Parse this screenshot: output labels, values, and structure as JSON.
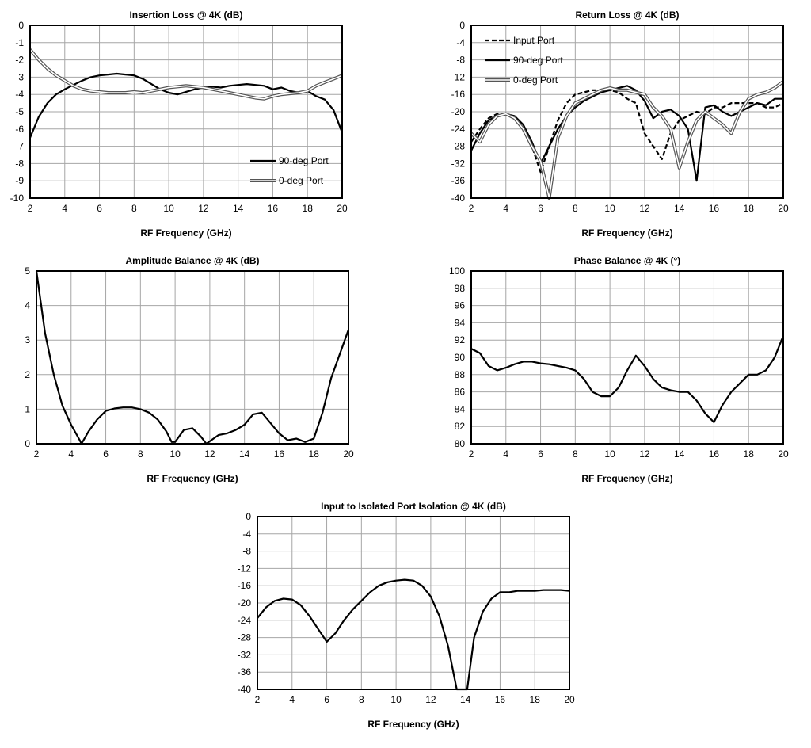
{
  "chart_data": [
    {
      "id": "insertion-loss",
      "type": "line",
      "title": "Insertion Loss @ 4K (dB)",
      "xlabel": "RF Frequency  (GHz)",
      "ylabel": "",
      "xlim": [
        2,
        20
      ],
      "ylim": [
        -10,
        0
      ],
      "xticks": [
        2,
        4,
        6,
        8,
        10,
        12,
        14,
        16,
        18,
        20
      ],
      "yticks": [
        0,
        -1,
        -2,
        -3,
        -4,
        -5,
        -6,
        -7,
        -8,
        -9,
        -10
      ],
      "grid": true,
      "legend": "bottom-right",
      "series": [
        {
          "name": "90-deg Port",
          "style": "solid",
          "x": [
            2,
            2.5,
            3,
            3.5,
            4,
            4.5,
            5,
            5.5,
            6,
            6.5,
            7,
            7.5,
            8,
            8.5,
            9,
            9.5,
            10,
            10.5,
            11,
            11.5,
            12,
            12.5,
            13,
            13.5,
            14,
            14.5,
            15,
            15.5,
            16,
            16.5,
            17,
            17.5,
            18,
            18.5,
            19,
            19.5,
            20
          ],
          "y": [
            -6.5,
            -5.3,
            -4.5,
            -4.0,
            -3.7,
            -3.45,
            -3.2,
            -3.0,
            -2.9,
            -2.85,
            -2.8,
            -2.85,
            -2.9,
            -3.1,
            -3.4,
            -3.7,
            -3.9,
            -4.0,
            -3.85,
            -3.7,
            -3.6,
            -3.55,
            -3.6,
            -3.5,
            -3.45,
            -3.4,
            -3.45,
            -3.5,
            -3.7,
            -3.6,
            -3.8,
            -3.9,
            -3.8,
            -4.1,
            -4.3,
            -4.9,
            -6.2
          ]
        },
        {
          "name": "0-deg Port",
          "style": "double",
          "x": [
            2,
            2.5,
            3,
            3.5,
            4,
            4.5,
            5,
            5.5,
            6,
            6.5,
            7,
            7.5,
            8,
            8.5,
            9,
            9.5,
            10,
            10.5,
            11,
            11.5,
            12,
            12.5,
            13,
            13.5,
            14,
            14.5,
            15,
            15.5,
            16,
            16.5,
            17,
            17.5,
            18,
            18.5,
            19,
            19.5,
            20
          ],
          "y": [
            -1.4,
            -2.0,
            -2.5,
            -2.9,
            -3.2,
            -3.5,
            -3.7,
            -3.8,
            -3.85,
            -3.9,
            -3.9,
            -3.9,
            -3.85,
            -3.9,
            -3.8,
            -3.7,
            -3.6,
            -3.55,
            -3.5,
            -3.55,
            -3.6,
            -3.7,
            -3.8,
            -3.9,
            -4.0,
            -4.1,
            -4.2,
            -4.25,
            -4.1,
            -4.0,
            -3.95,
            -3.9,
            -3.8,
            -3.5,
            -3.3,
            -3.1,
            -2.9
          ]
        }
      ]
    },
    {
      "id": "return-loss",
      "type": "line",
      "title": "Return Loss @ 4K (dB)",
      "xlabel": "RF Frequency  (GHz)",
      "ylabel": "",
      "xlim": [
        2,
        20
      ],
      "ylim": [
        -40,
        0
      ],
      "xticks": [
        2,
        4,
        6,
        8,
        10,
        12,
        14,
        16,
        18,
        20
      ],
      "yticks": [
        0,
        -4,
        -8,
        -12,
        -16,
        -20,
        -24,
        -28,
        -32,
        -36,
        -40
      ],
      "grid": true,
      "legend": "top-left",
      "series": [
        {
          "name": "Input Port",
          "style": "dashed",
          "x": [
            2,
            2.5,
            3,
            3.5,
            4,
            4.5,
            5,
            5.5,
            6,
            6.5,
            7,
            7.5,
            8,
            8.5,
            9,
            9.5,
            10,
            10.5,
            11,
            11.5,
            12,
            12.5,
            13,
            13.5,
            14,
            14.5,
            15,
            15.5,
            16,
            16.5,
            17,
            17.5,
            18,
            18.5,
            19,
            19.5,
            20
          ],
          "y": [
            -27,
            -24,
            -21.5,
            -20.5,
            -20.5,
            -21.5,
            -24,
            -28,
            -34,
            -28,
            -22,
            -18,
            -16,
            -15.5,
            -15,
            -15,
            -15,
            -15.5,
            -17,
            -18,
            -25,
            -28,
            -31,
            -25,
            -22,
            -21,
            -20,
            -20.5,
            -19,
            -19,
            -18,
            -18,
            -18,
            -18,
            -19,
            -19,
            -18
          ]
        },
        {
          "name": "90-deg Port",
          "style": "solid",
          "x": [
            2,
            2.5,
            3,
            3.5,
            4,
            4.5,
            5,
            5.5,
            6,
            6.5,
            7,
            7.5,
            8,
            8.5,
            9,
            9.5,
            10,
            10.5,
            11,
            11.5,
            12,
            12.5,
            13,
            13.5,
            14,
            14.5,
            15,
            15.5,
            16,
            16.5,
            17,
            17.5,
            18,
            18.5,
            19,
            19.5,
            20
          ],
          "y": [
            -29,
            -25,
            -22,
            -21,
            -20.5,
            -21,
            -23,
            -27,
            -32,
            -28,
            -24,
            -21,
            -19,
            -17.5,
            -16.5,
            -15.5,
            -15,
            -14.5,
            -14,
            -15,
            -17.5,
            -21.5,
            -20,
            -19.5,
            -21,
            -24,
            -36,
            -19,
            -18.5,
            -20,
            -21,
            -20,
            -19,
            -18,
            -18.5,
            -17,
            -17
          ]
        },
        {
          "name": "0-deg Port",
          "style": "double",
          "x": [
            2,
            2.5,
            3,
            3.5,
            4,
            4.5,
            5,
            5.5,
            6,
            6.5,
            7,
            7.5,
            8,
            8.5,
            9,
            9.5,
            10,
            10.5,
            11,
            11.5,
            12,
            12.5,
            13,
            13.5,
            14,
            14.5,
            15,
            15.5,
            16,
            16.5,
            17,
            17.5,
            18,
            18.5,
            19,
            19.5,
            20
          ],
          "y": [
            -25,
            -27,
            -23,
            -21,
            -20.5,
            -21.5,
            -24,
            -28,
            -31.5,
            -40,
            -26,
            -21,
            -18,
            -17,
            -16,
            -15,
            -14.5,
            -15,
            -15,
            -15.5,
            -16,
            -19,
            -21,
            -24,
            -33,
            -27,
            -22,
            -20,
            -21.5,
            -23,
            -25,
            -20,
            -17,
            -16,
            -15.5,
            -14.5,
            -13
          ]
        }
      ]
    },
    {
      "id": "amplitude-balance",
      "type": "line",
      "title": "Amplitude Balance @ 4K (dB)",
      "xlabel": "RF Frequency  (GHz)",
      "ylabel": "",
      "xlim": [
        2,
        20
      ],
      "ylim": [
        0,
        5
      ],
      "xticks": [
        2,
        4,
        6,
        8,
        10,
        12,
        14,
        16,
        18,
        20
      ],
      "yticks": [
        0,
        1,
        2,
        3,
        4,
        5
      ],
      "grid": true,
      "legend": "none",
      "series": [
        {
          "style": "solid",
          "x": [
            2,
            2.5,
            3,
            3.5,
            4,
            4.5,
            4.6,
            5,
            5.5,
            6,
            6.5,
            7,
            7.5,
            8,
            8.5,
            9,
            9.5,
            9.8,
            10,
            10.5,
            11,
            11.5,
            11.8,
            12.5,
            13,
            13.5,
            14,
            14.5,
            15,
            15.5,
            16,
            16.5,
            17,
            17.5,
            18,
            18.5,
            19,
            19.5,
            20
          ],
          "y": [
            5,
            3.2,
            2.0,
            1.1,
            0.55,
            0.1,
            0,
            0.35,
            0.7,
            0.95,
            1.02,
            1.05,
            1.05,
            1.0,
            0.9,
            0.7,
            0.35,
            0.05,
            0.05,
            0.4,
            0.45,
            0.2,
            0.0,
            0.25,
            0.3,
            0.4,
            0.55,
            0.85,
            0.9,
            0.6,
            0.3,
            0.1,
            0.15,
            0.05,
            0.15,
            0.9,
            1.9,
            2.6,
            3.3
          ]
        }
      ]
    },
    {
      "id": "phase-balance",
      "type": "line",
      "title": "Phase Balance @ 4K (°)",
      "xlabel": "RF Frequency  (GHz)",
      "ylabel": "",
      "xlim": [
        2,
        20
      ],
      "ylim": [
        80,
        100
      ],
      "xticks": [
        2,
        4,
        6,
        8,
        10,
        12,
        14,
        16,
        18,
        20
      ],
      "yticks": [
        100,
        98,
        96,
        94,
        92,
        90,
        88,
        86,
        84,
        82,
        80
      ],
      "grid": true,
      "legend": "none",
      "series": [
        {
          "style": "solid",
          "x": [
            2,
            2.5,
            3,
            3.5,
            4,
            4.5,
            5,
            5.5,
            6,
            6.5,
            7,
            7.5,
            8,
            8.5,
            9,
            9.5,
            10,
            10.5,
            11,
            11.5,
            12,
            12.5,
            13,
            13.5,
            14,
            14.5,
            15,
            15.5,
            16,
            16.5,
            17,
            17.5,
            18,
            18.5,
            19,
            19.5,
            20
          ],
          "y": [
            91,
            90.5,
            89,
            88.5,
            88.8,
            89.2,
            89.5,
            89.5,
            89.3,
            89.2,
            89,
            88.8,
            88.5,
            87.5,
            86,
            85.5,
            85.5,
            86.5,
            88.5,
            90.2,
            89,
            87.5,
            86.5,
            86.2,
            86,
            86,
            85,
            83.5,
            82.5,
            84.5,
            86,
            87,
            88,
            88,
            88.5,
            90,
            92.5
          ]
        }
      ]
    },
    {
      "id": "isolation",
      "type": "line",
      "title": "Input to Isolated Port Isolation @ 4K (dB)",
      "xlabel": "RF Frequency  (GHz)",
      "ylabel": "",
      "xlim": [
        2,
        20
      ],
      "ylim": [
        -40,
        0
      ],
      "xticks": [
        2,
        4,
        6,
        8,
        10,
        12,
        14,
        16,
        18,
        20
      ],
      "yticks": [
        0,
        -4,
        -8,
        -12,
        -16,
        -20,
        -24,
        -28,
        -32,
        -36,
        -40
      ],
      "grid": true,
      "legend": "none",
      "series": [
        {
          "style": "solid",
          "x": [
            2,
            2.5,
            3,
            3.5,
            4,
            4.5,
            5,
            5.5,
            6,
            6.5,
            7,
            7.5,
            8,
            8.5,
            9,
            9.5,
            10,
            10.5,
            11,
            11.5,
            12,
            12.5,
            13,
            13.5,
            13.9,
            14.1,
            14.5,
            15,
            15.5,
            16,
            16.5,
            17,
            17.5,
            18,
            18.5,
            19,
            19.5,
            20
          ],
          "y": [
            -23.5,
            -21,
            -19.5,
            -19,
            -19.2,
            -20.5,
            -23,
            -26,
            -29,
            -27,
            -24,
            -21.5,
            -19.5,
            -17.5,
            -16,
            -15.2,
            -14.8,
            -14.6,
            -14.8,
            -16,
            -18.5,
            -23,
            -30,
            -40,
            -40,
            -40,
            -28,
            -22,
            -19,
            -17.5,
            -17.5,
            -17.2,
            -17.2,
            -17.2,
            -17,
            -17,
            -17,
            -17.2
          ]
        }
      ]
    }
  ]
}
